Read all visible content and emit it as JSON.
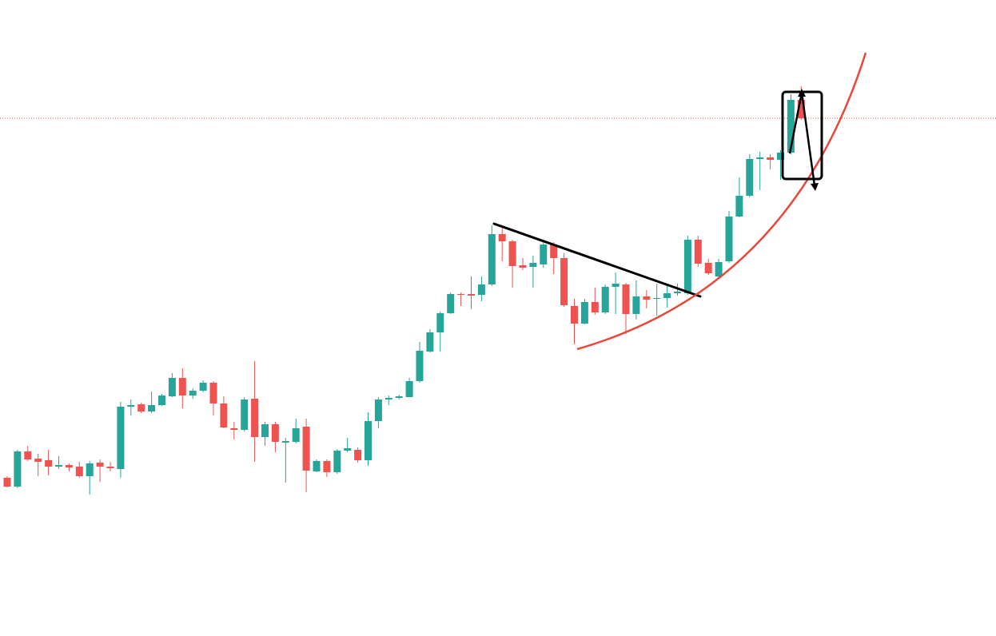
{
  "chart_data": {
    "type": "candlestick",
    "ylim": [
      0,
      796
    ],
    "up_color": "#26a69a",
    "down_color": "#ef5350",
    "price_line": 648,
    "open": [
      198,
      187,
      231,
      222,
      220,
      212,
      214,
      212,
      200,
      217,
      212,
      209,
      287,
      290,
      281,
      289,
      300,
      323,
      301,
      307,
      317,
      291,
      260,
      258,
      297,
      249,
      265,
      242,
      243,
      262,
      206,
      219,
      205,
      232,
      233,
      220,
      269,
      296,
      298,
      299,
      319,
      356,
      380,
      404,
      428,
      428,
      427,
      440,
      503,
      494,
      464,
      462,
      465,
      490,
      473,
      413,
      391,
      418,
      405,
      437,
      440,
      403,
      425,
      422,
      423,
      429,
      429,
      496,
      467,
      450,
      469,
      525,
      551,
      597,
      599,
      596,
      605,
      671
    ],
    "high": [
      200,
      233,
      238,
      228,
      233,
      225,
      216,
      218,
      219,
      221,
      218,
      293,
      296,
      292,
      306,
      303,
      329,
      335,
      310,
      320,
      319,
      300,
      268,
      299,
      344,
      268,
      268,
      248,
      272,
      272,
      221,
      221,
      234,
      248,
      236,
      280,
      299,
      301,
      302,
      323,
      368,
      384,
      406,
      430,
      430,
      450,
      450,
      514,
      511,
      496,
      473,
      476,
      494,
      493,
      479,
      422,
      422,
      436,
      440,
      455,
      442,
      445,
      433,
      441,
      438,
      441,
      501,
      501,
      472,
      472,
      532,
      574,
      603,
      606,
      603,
      608,
      678,
      688
    ],
    "low": [
      186,
      185,
      219,
      200,
      201,
      209,
      206,
      198,
      177,
      193,
      206,
      198,
      276,
      279,
      279,
      288,
      299,
      285,
      297,
      305,
      276,
      260,
      246,
      256,
      218,
      238,
      230,
      192,
      241,
      180,
      205,
      199,
      203,
      230,
      217,
      213,
      260,
      289,
      296,
      299,
      317,
      355,
      356,
      403,
      413,
      409,
      419,
      438,
      469,
      436,
      458,
      436,
      461,
      453,
      412,
      365,
      390,
      402,
      403,
      403,
      378,
      396,
      410,
      401,
      411,
      426,
      427,
      462,
      452,
      449,
      467,
      524,
      549,
      558,
      584,
      571,
      603,
      646
    ],
    "close": [
      187,
      231,
      221,
      218,
      212,
      214,
      211,
      200,
      216,
      212,
      210,
      287,
      289,
      281,
      289,
      301,
      323,
      301,
      307,
      317,
      291,
      261,
      258,
      296,
      249,
      265,
      243,
      244,
      260,
      207,
      219,
      205,
      232,
      235,
      220,
      269,
      296,
      298,
      300,
      319,
      357,
      380,
      404,
      428,
      427,
      426,
      440,
      503,
      494,
      463,
      461,
      467,
      490,
      473,
      414,
      391,
      418,
      405,
      437,
      441,
      403,
      425,
      421,
      423,
      429,
      431,
      496,
      466,
      454,
      468,
      525,
      551,
      597,
      599,
      596,
      605,
      671,
      648
    ]
  }
}
